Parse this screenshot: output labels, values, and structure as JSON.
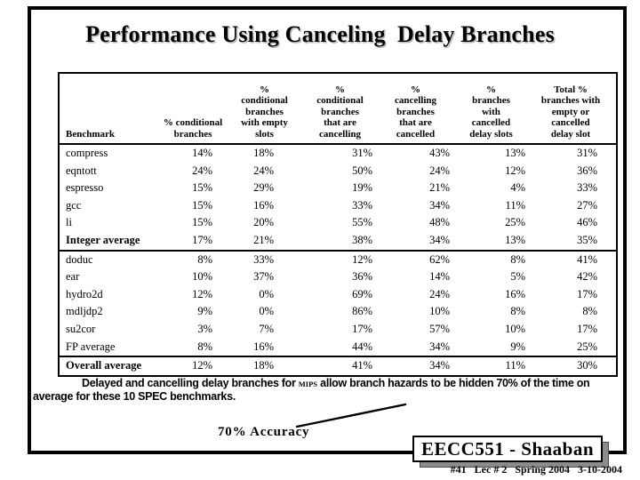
{
  "slide": {
    "title": "Performance Using Canceling  Delay Branches",
    "caption": {
      "before_mips": "Delayed and cancelling delay branches for ",
      "mips": "MIPS",
      "after_mips": " allow branch hazards to be hidden 70% of the time on average for these 10 SPEC benchmarks."
    },
    "annotation_label": "70% Accuracy",
    "course_box": "EECC551 - Shaaban",
    "footer": "#41   Lec # 2   Spring 2004   3-10-2004"
  },
  "table": {
    "headers": [
      "Benchmark",
      "% conditional\nbranches",
      "%\nconditional\nbranches\nwith empty\nslots",
      "%\nconditional\nbranches\nthat are\ncancelling",
      "%\ncancelling\nbranches\nthat are\ncancelled",
      "%\nbranches\nwith\ncancelled\ndelay slots",
      "Total %\nbranches with\nempty or\ncancelled\ndelay slot"
    ],
    "rows": [
      {
        "name": "compress",
        "values": [
          "14%",
          "18%",
          "31%",
          "43%",
          "13%",
          "31%"
        ],
        "bold": false,
        "section_end": false
      },
      {
        "name": "eqntott",
        "values": [
          "24%",
          "24%",
          "50%",
          "24%",
          "12%",
          "36%"
        ],
        "bold": false,
        "section_end": false
      },
      {
        "name": "espresso",
        "values": [
          "15%",
          "29%",
          "19%",
          "21%",
          "4%",
          "33%"
        ],
        "bold": false,
        "section_end": false
      },
      {
        "name": "gcc",
        "values": [
          "15%",
          "16%",
          "33%",
          "34%",
          "11%",
          "27%"
        ],
        "bold": false,
        "section_end": false
      },
      {
        "name": "li",
        "values": [
          "15%",
          "20%",
          "55%",
          "48%",
          "25%",
          "46%"
        ],
        "bold": false,
        "section_end": false
      },
      {
        "name": "Integer average",
        "values": [
          "17%",
          "21%",
          "38%",
          "34%",
          "13%",
          "35%"
        ],
        "bold": true,
        "section_end": true
      },
      {
        "name": "doduc",
        "values": [
          "8%",
          "33%",
          "12%",
          "62%",
          "8%",
          "41%"
        ],
        "bold": false,
        "section_end": false
      },
      {
        "name": "ear",
        "values": [
          "10%",
          "37%",
          "36%",
          "14%",
          "5%",
          "42%"
        ],
        "bold": false,
        "section_end": false
      },
      {
        "name": "hydro2d",
        "values": [
          "12%",
          "0%",
          "69%",
          "24%",
          "16%",
          "17%"
        ],
        "bold": false,
        "section_end": false
      },
      {
        "name": "mdljdp2",
        "values": [
          "9%",
          "0%",
          "86%",
          "10%",
          "8%",
          "8%"
        ],
        "bold": false,
        "section_end": false
      },
      {
        "name": "su2cor",
        "values": [
          "3%",
          "7%",
          "17%",
          "57%",
          "10%",
          "17%"
        ],
        "bold": false,
        "section_end": false
      },
      {
        "name": "FP average",
        "values": [
          "8%",
          "16%",
          "44%",
          "34%",
          "9%",
          "25%"
        ],
        "bold": false,
        "section_end": true
      },
      {
        "name": "Overall average",
        "values": [
          "12%",
          "18%",
          "41%",
          "34%",
          "11%",
          "30%"
        ],
        "bold": true,
        "section_end": false
      }
    ]
  }
}
